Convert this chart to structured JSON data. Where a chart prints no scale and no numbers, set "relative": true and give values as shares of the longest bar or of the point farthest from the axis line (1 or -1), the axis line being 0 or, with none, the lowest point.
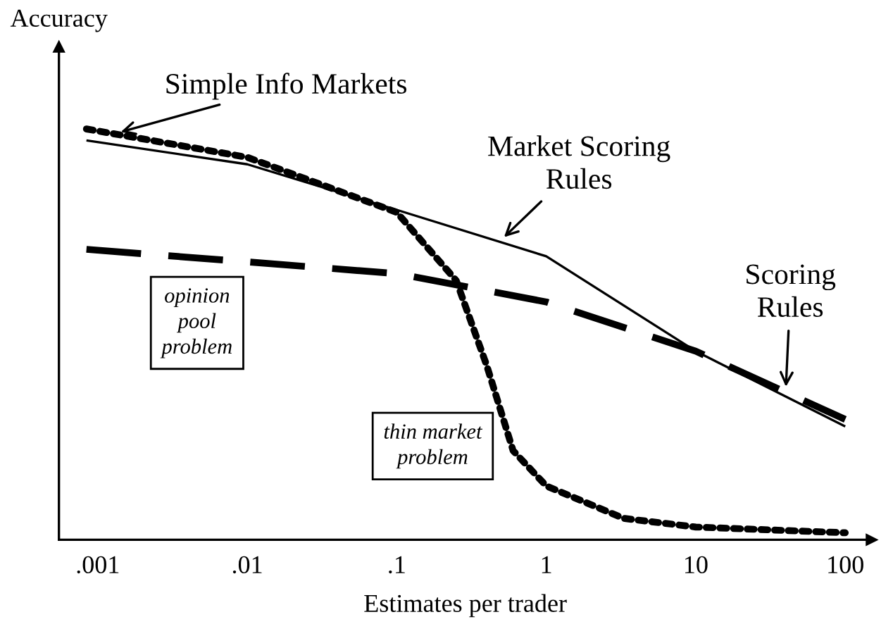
{
  "chart_data": {
    "type": "line",
    "relative": true,
    "log": "x",
    "xlabel": "Estimates per trader",
    "ylabel": "Accuracy",
    "xlim": [
      0.00055,
      150
    ],
    "xticks": [
      {
        "value": 0.001,
        "label": ".001"
      },
      {
        "value": 0.01,
        "label": ".01"
      },
      {
        "value": 0.1,
        "label": ".1"
      },
      {
        "value": 1,
        "label": "1"
      },
      {
        "value": 10,
        "label": "10"
      },
      {
        "value": 100,
        "label": "100"
      }
    ],
    "tick_labels": "x",
    "grid": false,
    "series": [
      {
        "name": "Simple Info Markets",
        "color": "#000000",
        "line_style": "dotted",
        "x": [
          0.00084,
          0.01,
          0.1,
          0.25,
          0.4,
          0.6,
          1,
          3.3,
          10,
          100
        ],
        "values": [
          1,
          0.931,
          0.797,
          0.631,
          0.424,
          0.217,
          0.131,
          0.052,
          0.031,
          0.017
        ]
      },
      {
        "name": "Market Scoring Rules",
        "color": "#000000",
        "line_style": "solid",
        "x": [
          0.00084,
          0.01,
          0.1,
          1,
          10,
          100
        ],
        "values": [
          0.972,
          0.914,
          0.803,
          0.69,
          0.459,
          0.276
        ]
      },
      {
        "name": "Scoring Rules",
        "color": "#000000",
        "line_style": "dashed",
        "x": [
          0.00084,
          0.1,
          1,
          10,
          100
        ],
        "values": [
          0.707,
          0.648,
          0.579,
          0.459,
          0.293
        ]
      }
    ],
    "annotations": [
      "opinion\npool\nproblem",
      "thin market\nproblem"
    ]
  }
}
